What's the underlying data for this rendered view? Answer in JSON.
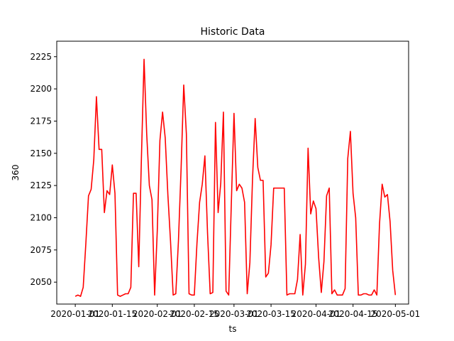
{
  "chart_data": {
    "type": "line",
    "title": "Historic Data",
    "xlabel": "ts",
    "ylabel": "360",
    "grid": false,
    "legend": "none",
    "series_color": "#ff0000",
    "x_tick_labels": [
      "2020-01-01",
      "2020-01-15",
      "2020-02-01",
      "2020-02-15",
      "2020-03-01",
      "2020-03-15",
      "2020-04-01",
      "2020-04-15",
      "2020-05-01"
    ],
    "y_ticks": [
      2050,
      2075,
      2100,
      2125,
      2150,
      2175,
      2200,
      2225
    ],
    "xlim": [
      "2019-12-25",
      "2020-05-06"
    ],
    "ylim": [
      2033,
      2237
    ],
    "series": [
      {
        "x": [
          "2020-01-01",
          "2020-01-02",
          "2020-01-03",
          "2020-01-04",
          "2020-01-05",
          "2020-01-06",
          "2020-01-07",
          "2020-01-08",
          "2020-01-09",
          "2020-01-10",
          "2020-01-11",
          "2020-01-12",
          "2020-01-13",
          "2020-01-14",
          "2020-01-15",
          "2020-01-16",
          "2020-01-17",
          "2020-01-18",
          "2020-01-19",
          "2020-01-20",
          "2020-01-21",
          "2020-01-22",
          "2020-01-23",
          "2020-01-24",
          "2020-01-25",
          "2020-01-26",
          "2020-01-27",
          "2020-01-28",
          "2020-01-29",
          "2020-01-30",
          "2020-01-31",
          "2020-02-01",
          "2020-02-02",
          "2020-02-03",
          "2020-02-04",
          "2020-02-05",
          "2020-02-06",
          "2020-02-07",
          "2020-02-08",
          "2020-02-09",
          "2020-02-10",
          "2020-02-11",
          "2020-02-12",
          "2020-02-13",
          "2020-02-14",
          "2020-02-15",
          "2020-02-16",
          "2020-02-17",
          "2020-02-18",
          "2020-02-19",
          "2020-02-20",
          "2020-02-21",
          "2020-02-22",
          "2020-02-23",
          "2020-02-24",
          "2020-02-25",
          "2020-02-26",
          "2020-02-27",
          "2020-02-28",
          "2020-02-29",
          "2020-03-01",
          "2020-03-02",
          "2020-03-03",
          "2020-03-04",
          "2020-03-05",
          "2020-03-06",
          "2020-03-07",
          "2020-03-08",
          "2020-03-09",
          "2020-03-10",
          "2020-03-11",
          "2020-03-12",
          "2020-03-13",
          "2020-03-14",
          "2020-03-15",
          "2020-03-16",
          "2020-03-17",
          "2020-03-18",
          "2020-03-19",
          "2020-03-20",
          "2020-03-21",
          "2020-03-22",
          "2020-03-23",
          "2020-03-24",
          "2020-03-25",
          "2020-03-26",
          "2020-03-27",
          "2020-03-28",
          "2020-03-29",
          "2020-03-30",
          "2020-03-31",
          "2020-04-01",
          "2020-04-02",
          "2020-04-03",
          "2020-04-04",
          "2020-04-05",
          "2020-04-06",
          "2020-04-07",
          "2020-04-08",
          "2020-04-09",
          "2020-04-10",
          "2020-04-11",
          "2020-04-12",
          "2020-04-13",
          "2020-04-14",
          "2020-04-15",
          "2020-04-16",
          "2020-04-17",
          "2020-04-18",
          "2020-04-19",
          "2020-04-20",
          "2020-04-21",
          "2020-04-22",
          "2020-04-23",
          "2020-04-24",
          "2020-04-25",
          "2020-04-26",
          "2020-04-27",
          "2020-04-28",
          "2020-04-29",
          "2020-04-30",
          "2020-05-01"
        ],
        "y": [
          2039,
          2040,
          2039,
          2046,
          2080,
          2117,
          2122,
          2145,
          2194,
          2153,
          2153,
          2104,
          2121,
          2118,
          2141,
          2119,
          2040,
          2039,
          2040,
          2041,
          2041,
          2046,
          2119,
          2119,
          2062,
          2146,
          2223,
          2165,
          2125,
          2114,
          2040,
          2090,
          2160,
          2182,
          2162,
          2118,
          2082,
          2040,
          2041,
          2082,
          2138,
          2203,
          2165,
          2041,
          2040,
          2040,
          2080,
          2112,
          2126,
          2148,
          2088,
          2041,
          2042,
          2174,
          2104,
          2127,
          2182,
          2043,
          2040,
          2112,
          2181,
          2121,
          2126,
          2123,
          2112,
          2041,
          2065,
          2130,
          2177,
          2139,
          2129,
          2129,
          2054,
          2057,
          2079,
          2123,
          2123,
          2123,
          2123,
          2123,
          2040,
          2041,
          2041,
          2041,
          2052,
          2087,
          2040,
          2064,
          2154,
          2103,
          2113,
          2107,
          2069,
          2042,
          2066,
          2117,
          2123,
          2041,
          2044,
          2040,
          2040,
          2040,
          2045,
          2146,
          2167,
          2119,
          2100,
          2040,
          2040,
          2041,
          2041,
          2040,
          2040,
          2044,
          2040,
          2095,
          2126,
          2116,
          2118,
          2097,
          2059,
          2040
        ]
      }
    ]
  }
}
